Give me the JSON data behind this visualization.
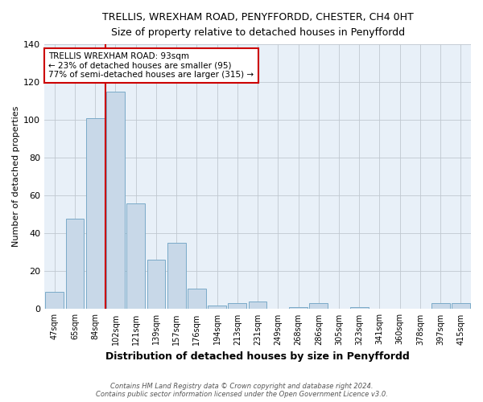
{
  "title_line1": "TRELLIS, WREXHAM ROAD, PENYFFORDD, CHESTER, CH4 0HT",
  "title_line2": "Size of property relative to detached houses in Penyffordd",
  "xlabel": "Distribution of detached houses by size in Penyffordd",
  "ylabel": "Number of detached properties",
  "categories": [
    "47sqm",
    "65sqm",
    "84sqm",
    "102sqm",
    "121sqm",
    "139sqm",
    "157sqm",
    "176sqm",
    "194sqm",
    "213sqm",
    "231sqm",
    "249sqm",
    "268sqm",
    "286sqm",
    "305sqm",
    "323sqm",
    "341sqm",
    "360sqm",
    "378sqm",
    "397sqm",
    "415sqm"
  ],
  "values": [
    9,
    48,
    101,
    115,
    56,
    26,
    35,
    11,
    2,
    3,
    4,
    0,
    1,
    3,
    0,
    1,
    0,
    0,
    0,
    3,
    3
  ],
  "bar_color": "#c8d8e8",
  "bar_edge_color": "#7aaac8",
  "vline_color": "#cc0000",
  "vline_x_index": 2.5,
  "annotation_line1": "TRELLIS WREXHAM ROAD: 93sqm",
  "annotation_line2": "← 23% of detached houses are smaller (95)",
  "annotation_line3": "77% of semi-detached houses are larger (315) →",
  "annotation_box_color": "#ffffff",
  "annotation_box_edge": "#cc0000",
  "ylim": [
    0,
    140
  ],
  "yticks": [
    0,
    20,
    40,
    60,
    80,
    100,
    120,
    140
  ],
  "footer_line1": "Contains HM Land Registry data © Crown copyright and database right 2024.",
  "footer_line2": "Contains public sector information licensed under the Open Government Licence v3.0.",
  "background_color": "#ffffff",
  "plot_bg_color": "#e8f0f8",
  "grid_color": "#c0c8d0"
}
